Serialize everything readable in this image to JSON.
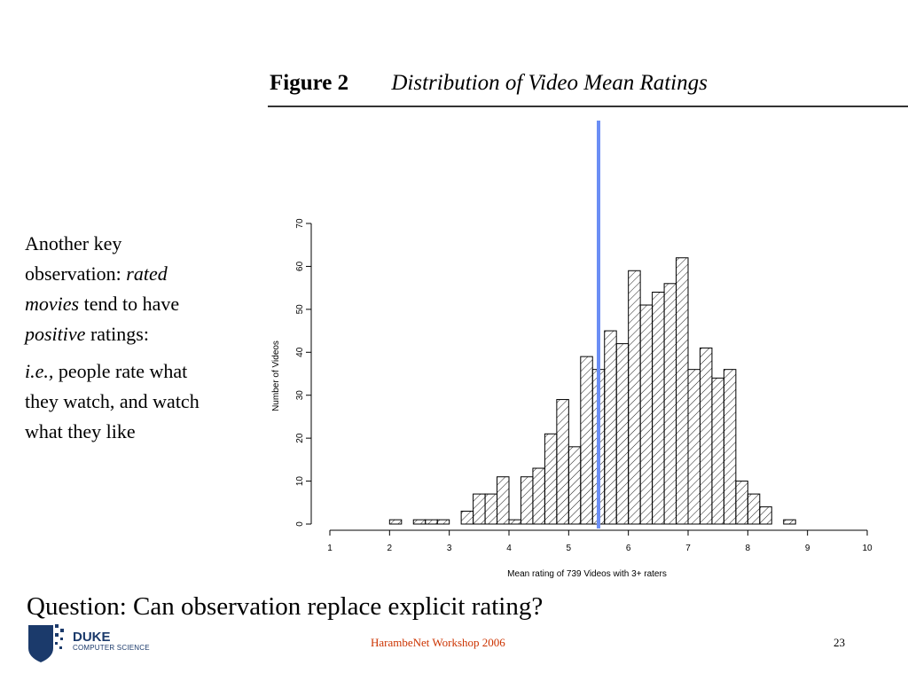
{
  "figure": {
    "label": "Figure 2",
    "title": "Distribution of Video Mean Ratings"
  },
  "side_text": {
    "p1": [
      "Another key observation: ",
      "rated movies",
      " tend to have ",
      "positive",
      " ratings:"
    ],
    "p2": [
      "i.e.,",
      " people rate what they watch, and watch what they like"
    ]
  },
  "question": "Question: Can observation replace explicit rating?",
  "footer": {
    "center": "HarambeNet Workshop  2006",
    "page": "23",
    "logo_name": "DUKE",
    "logo_dept": "COMPUTER SCIENCE"
  },
  "colors": {
    "marker_line": "#6b8ef5",
    "footer_text": "#cc3300",
    "logo": "#1b3a6b"
  },
  "chart_data": {
    "type": "bar",
    "xlabel": "Mean rating of 739 Videos with 3+ raters",
    "ylabel": "Number of Videos",
    "xlim": [
      1,
      10
    ],
    "ylim": [
      0,
      70
    ],
    "x_ticks": [
      "1",
      "2",
      "3",
      "4",
      "5",
      "6",
      "7",
      "8",
      "9",
      "10"
    ],
    "y_ticks": [
      "0",
      "10",
      "20",
      "30",
      "40",
      "50",
      "60",
      "70"
    ],
    "bin_width": 0.2,
    "bins": [
      {
        "x0": 2.0,
        "count": 1
      },
      {
        "x0": 2.4,
        "count": 1
      },
      {
        "x0": 2.6,
        "count": 1
      },
      {
        "x0": 2.8,
        "count": 1
      },
      {
        "x0": 3.2,
        "count": 3
      },
      {
        "x0": 3.4,
        "count": 7
      },
      {
        "x0": 3.6,
        "count": 7
      },
      {
        "x0": 3.8,
        "count": 11
      },
      {
        "x0": 4.0,
        "count": 1
      },
      {
        "x0": 4.2,
        "count": 11
      },
      {
        "x0": 4.4,
        "count": 13
      },
      {
        "x0": 4.6,
        "count": 21
      },
      {
        "x0": 4.8,
        "count": 29
      },
      {
        "x0": 5.0,
        "count": 18
      },
      {
        "x0": 5.2,
        "count": 39
      },
      {
        "x0": 5.4,
        "count": 36
      },
      {
        "x0": 5.6,
        "count": 45
      },
      {
        "x0": 5.8,
        "count": 42
      },
      {
        "x0": 6.0,
        "count": 59
      },
      {
        "x0": 6.2,
        "count": 51
      },
      {
        "x0": 6.4,
        "count": 54
      },
      {
        "x0": 6.6,
        "count": 56
      },
      {
        "x0": 6.8,
        "count": 62
      },
      {
        "x0": 7.0,
        "count": 36
      },
      {
        "x0": 7.2,
        "count": 41
      },
      {
        "x0": 7.4,
        "count": 34
      },
      {
        "x0": 7.6,
        "count": 36
      },
      {
        "x0": 7.8,
        "count": 10
      },
      {
        "x0": 8.0,
        "count": 7
      },
      {
        "x0": 8.2,
        "count": 4
      },
      {
        "x0": 8.6,
        "count": 1
      }
    ],
    "marker_x": 5.5,
    "grid": false,
    "legend": "none"
  }
}
